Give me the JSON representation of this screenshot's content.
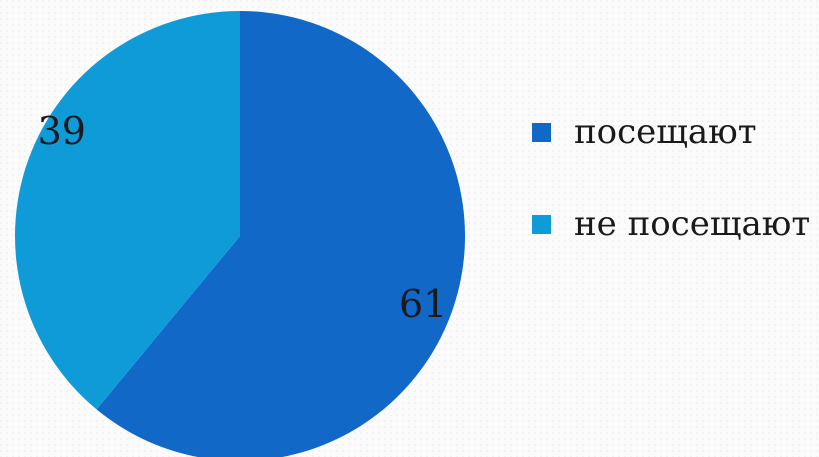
{
  "chart_data": {
    "type": "pie",
    "categories": [
      "посещают",
      "не посещают"
    ],
    "values": [
      61,
      39
    ],
    "colors": [
      "#1168c7",
      "#0f9bd7"
    ],
    "data_labels": [
      "61",
      "39"
    ],
    "legend_position": "right",
    "title": ""
  }
}
